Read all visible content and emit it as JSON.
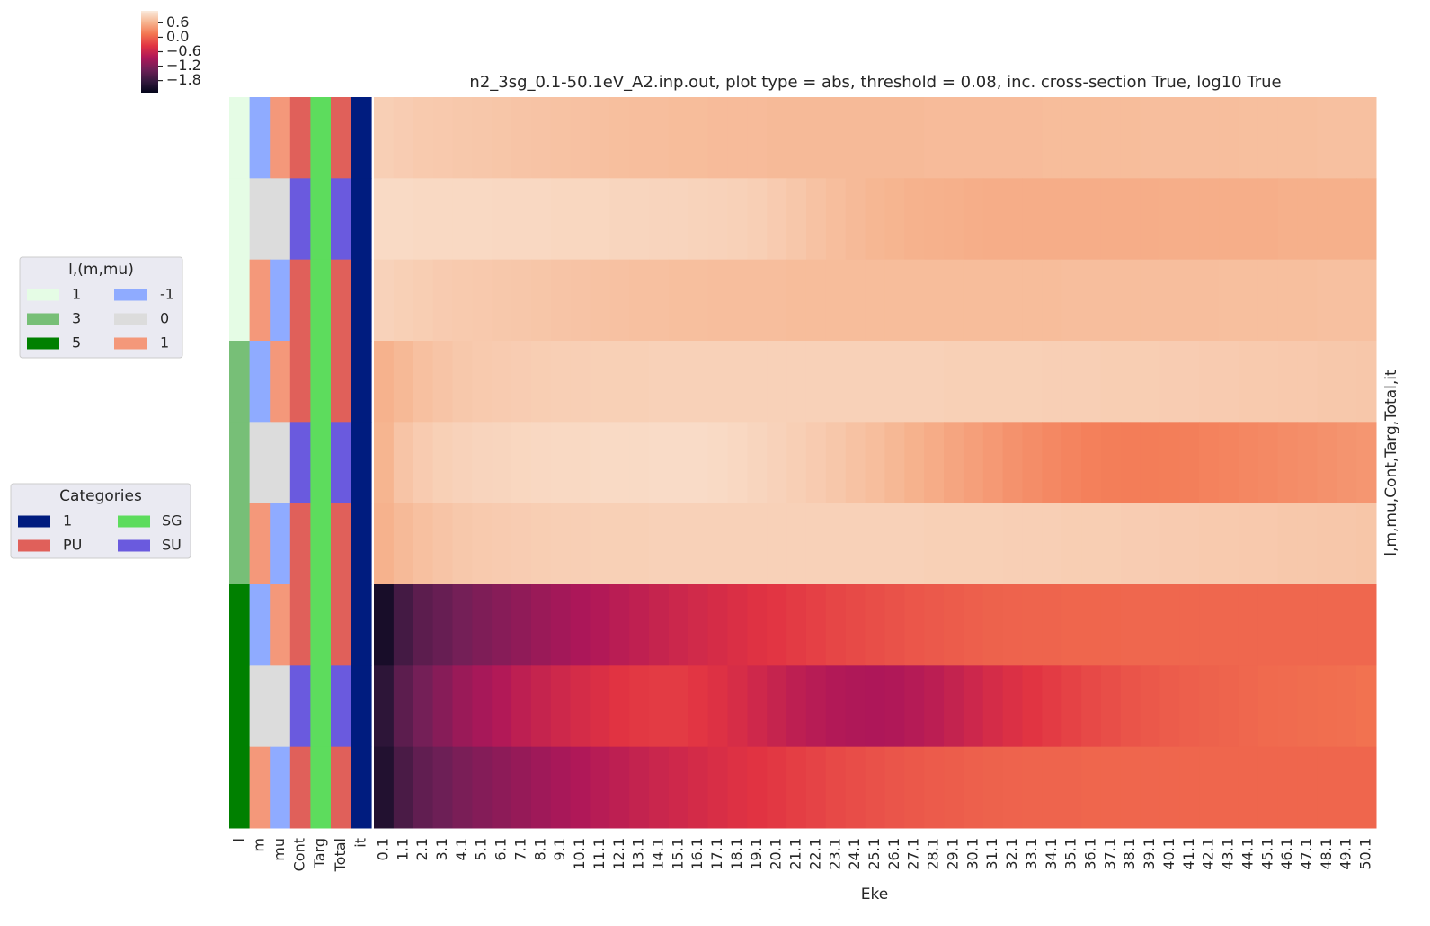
{
  "chart_data": {
    "type": "heatmap",
    "title": "n2_3sg_0.1-50.1eV_A2.inp.out, plot type = abs, threshold = 0.08, inc. cross-section True, log10 True",
    "xlabel": "Eke",
    "ylabel": "l,m,mu,Cont,Targ,Total,it",
    "categories": [
      "0.1",
      "1.1",
      "2.1",
      "3.1",
      "4.1",
      "5.1",
      "6.1",
      "7.1",
      "8.1",
      "9.1",
      "10.1",
      "11.1",
      "12.1",
      "13.1",
      "14.1",
      "15.1",
      "16.1",
      "17.1",
      "18.1",
      "19.1",
      "20.1",
      "21.1",
      "22.1",
      "23.1",
      "24.1",
      "25.1",
      "26.1",
      "27.1",
      "28.1",
      "29.1",
      "30.1",
      "31.1",
      "32.1",
      "33.1",
      "34.1",
      "35.1",
      "36.1",
      "37.1",
      "38.1",
      "39.1",
      "40.1",
      "41.1",
      "42.1",
      "43.1",
      "44.1",
      "45.1",
      "46.1",
      "47.1",
      "48.1",
      "49.1",
      "50.1"
    ],
    "values": [
      [
        0.85,
        0.83,
        0.81,
        0.8,
        0.79,
        0.78,
        0.77,
        0.76,
        0.75,
        0.74,
        0.73,
        0.72,
        0.71,
        0.7,
        0.7,
        0.69,
        0.69,
        0.68,
        0.68,
        0.68,
        0.67,
        0.67,
        0.67,
        0.67,
        0.67,
        0.67,
        0.67,
        0.67,
        0.68,
        0.68,
        0.68,
        0.68,
        0.68,
        0.68,
        0.69,
        0.69,
        0.69,
        0.69,
        0.69,
        0.7,
        0.7,
        0.7,
        0.7,
        0.7,
        0.71,
        0.71,
        0.71,
        0.71,
        0.72,
        0.72,
        0.72
      ],
      [
        0.95,
        0.95,
        0.94,
        0.94,
        0.94,
        0.94,
        0.93,
        0.93,
        0.93,
        0.92,
        0.92,
        0.92,
        0.91,
        0.91,
        0.9,
        0.9,
        0.89,
        0.88,
        0.87,
        0.85,
        0.82,
        0.78,
        0.74,
        0.7,
        0.67,
        0.64,
        0.62,
        0.6,
        0.59,
        0.58,
        0.57,
        0.56,
        0.56,
        0.56,
        0.56,
        0.56,
        0.56,
        0.56,
        0.56,
        0.56,
        0.57,
        0.57,
        0.57,
        0.57,
        0.57,
        0.57,
        0.58,
        0.58,
        0.58,
        0.58,
        0.58
      ],
      [
        0.88,
        0.86,
        0.84,
        0.82,
        0.81,
        0.8,
        0.79,
        0.78,
        0.77,
        0.76,
        0.75,
        0.74,
        0.73,
        0.72,
        0.72,
        0.71,
        0.71,
        0.7,
        0.7,
        0.7,
        0.7,
        0.69,
        0.69,
        0.69,
        0.69,
        0.69,
        0.69,
        0.69,
        0.69,
        0.69,
        0.69,
        0.69,
        0.69,
        0.69,
        0.69,
        0.7,
        0.7,
        0.7,
        0.7,
        0.7,
        0.7,
        0.7,
        0.7,
        0.71,
        0.71,
        0.71,
        0.71,
        0.71,
        0.72,
        0.72,
        0.72
      ],
      [
        0.6,
        0.66,
        0.72,
        0.76,
        0.79,
        0.81,
        0.82,
        0.83,
        0.84,
        0.85,
        0.85,
        0.86,
        0.86,
        0.86,
        0.87,
        0.87,
        0.87,
        0.87,
        0.87,
        0.87,
        0.87,
        0.87,
        0.87,
        0.87,
        0.87,
        0.87,
        0.87,
        0.87,
        0.87,
        0.86,
        0.86,
        0.86,
        0.86,
        0.86,
        0.85,
        0.85,
        0.85,
        0.84,
        0.84,
        0.84,
        0.83,
        0.83,
        0.82,
        0.82,
        0.81,
        0.81,
        0.8,
        0.8,
        0.79,
        0.79,
        0.78
      ],
      [
        0.62,
        0.76,
        0.82,
        0.86,
        0.88,
        0.9,
        0.91,
        0.92,
        0.93,
        0.94,
        0.94,
        0.95,
        0.95,
        0.95,
        0.96,
        0.96,
        0.96,
        0.95,
        0.93,
        0.91,
        0.88,
        0.85,
        0.82,
        0.78,
        0.74,
        0.7,
        0.65,
        0.6,
        0.55,
        0.5,
        0.45,
        0.4,
        0.35,
        0.31,
        0.27,
        0.24,
        0.21,
        0.19,
        0.18,
        0.18,
        0.19,
        0.2,
        0.22,
        0.24,
        0.26,
        0.28,
        0.3,
        0.32,
        0.34,
        0.36,
        0.38
      ],
      [
        0.6,
        0.67,
        0.72,
        0.76,
        0.79,
        0.81,
        0.82,
        0.83,
        0.84,
        0.85,
        0.85,
        0.86,
        0.86,
        0.86,
        0.87,
        0.87,
        0.87,
        0.87,
        0.87,
        0.87,
        0.87,
        0.87,
        0.87,
        0.87,
        0.87,
        0.87,
        0.87,
        0.87,
        0.86,
        0.86,
        0.86,
        0.86,
        0.85,
        0.85,
        0.85,
        0.84,
        0.84,
        0.84,
        0.83,
        0.83,
        0.82,
        0.82,
        0.81,
        0.81,
        0.8,
        0.8,
        0.79,
        0.79,
        0.78,
        0.78,
        0.77
      ],
      [
        -2.1,
        -1.7,
        -1.5,
        -1.4,
        -1.3,
        -1.22,
        -1.15,
        -1.08,
        -1.0,
        -0.93,
        -0.86,
        -0.8,
        -0.74,
        -0.68,
        -0.62,
        -0.57,
        -0.52,
        -0.47,
        -0.42,
        -0.38,
        -0.34,
        -0.3,
        -0.26,
        -0.22,
        -0.19,
        -0.16,
        -0.13,
        -0.1,
        -0.08,
        -0.06,
        -0.04,
        -0.02,
        -0.01,
        0.0,
        0.0,
        0.01,
        0.01,
        0.01,
        0.02,
        0.02,
        0.02,
        0.02,
        0.02,
        0.02,
        0.02,
        0.02,
        0.02,
        0.02,
        0.02,
        0.02,
        0.02
      ],
      [
        -1.9,
        -1.5,
        -1.3,
        -1.15,
        -1.0,
        -0.9,
        -0.8,
        -0.7,
        -0.62,
        -0.55,
        -0.48,
        -0.42,
        -0.36,
        -0.32,
        -0.3,
        -0.3,
        -0.34,
        -0.4,
        -0.46,
        -0.54,
        -0.62,
        -0.7,
        -0.76,
        -0.8,
        -0.83,
        -0.84,
        -0.82,
        -0.78,
        -0.72,
        -0.64,
        -0.56,
        -0.48,
        -0.41,
        -0.35,
        -0.3,
        -0.25,
        -0.2,
        -0.16,
        -0.12,
        -0.09,
        -0.06,
        -0.04,
        -0.02,
        0.0,
        0.02,
        0.04,
        0.05,
        0.06,
        0.07,
        0.08,
        0.1
      ],
      [
        -2.0,
        -1.65,
        -1.45,
        -1.35,
        -1.25,
        -1.17,
        -1.1,
        -1.03,
        -0.96,
        -0.89,
        -0.82,
        -0.76,
        -0.7,
        -0.64,
        -0.59,
        -0.54,
        -0.49,
        -0.44,
        -0.4,
        -0.36,
        -0.32,
        -0.28,
        -0.24,
        -0.2,
        -0.17,
        -0.14,
        -0.11,
        -0.09,
        -0.07,
        -0.05,
        -0.03,
        -0.02,
        -0.01,
        0.0,
        0.0,
        0.0,
        0.01,
        0.01,
        0.01,
        0.01,
        0.01,
        0.01,
        0.01,
        0.01,
        0.01,
        0.01,
        0.01,
        0.01,
        0.01,
        0.01,
        0.01
      ]
    ],
    "colormap": [
      "#03051a",
      "#36193e",
      "#701f57",
      "#ae1759",
      "#e13342",
      "#f37651",
      "#f6b48f",
      "#faebdd"
    ],
    "clim": [
      -2.3,
      1.1
    ],
    "cticks": [
      0.6,
      {
        "value": 0.0,
        "label": "0.0"
      },
      {
        "value": -0.6,
        "label": "−0.6"
      },
      {
        "value": -1.2,
        "label": "−1.2"
      },
      {
        "value": -1.8,
        "label": "−1.8"
      }
    ],
    "row_colors": {
      "labels": [
        "l",
        "m",
        "mu",
        "Cont",
        "Targ",
        "Total",
        "it"
      ],
      "colors": [
        [
          "#e5fce5",
          "#8fabff",
          "#f4987a",
          "#e0605a",
          "#5ddc5d",
          "#e0605a",
          "#001c7f"
        ],
        [
          "#e5fce5",
          "#dcdcdc",
          "#dcdcdc",
          "#6a5ade",
          "#5ddc5d",
          "#6a5ade",
          "#001c7f"
        ],
        [
          "#e5fce5",
          "#f4987a",
          "#8fabff",
          "#e0605a",
          "#5ddc5d",
          "#e0605a",
          "#001c7f"
        ],
        [
          "#77bf77",
          "#8fabff",
          "#f4987a",
          "#e0605a",
          "#5ddc5d",
          "#e0605a",
          "#001c7f"
        ],
        [
          "#77bf77",
          "#dcdcdc",
          "#dcdcdc",
          "#6a5ade",
          "#5ddc5d",
          "#6a5ade",
          "#001c7f"
        ],
        [
          "#77bf77",
          "#f4987a",
          "#8fabff",
          "#e0605a",
          "#5ddc5d",
          "#e0605a",
          "#001c7f"
        ],
        [
          "#008000",
          "#8fabff",
          "#f4987a",
          "#e0605a",
          "#5ddc5d",
          "#e0605a",
          "#001c7f"
        ],
        [
          "#008000",
          "#dcdcdc",
          "#dcdcdc",
          "#6a5ade",
          "#5ddc5d",
          "#6a5ade",
          "#001c7f"
        ],
        [
          "#008000",
          "#f4987a",
          "#8fabff",
          "#e0605a",
          "#5ddc5d",
          "#e0605a",
          "#001c7f"
        ]
      ]
    },
    "legends": [
      {
        "title": "l,(m,mu)",
        "entries": [
          {
            "label": "1",
            "color": "#e5fce5"
          },
          {
            "label": "3",
            "color": "#77bf77"
          },
          {
            "label": "5",
            "color": "#008000"
          },
          {
            "label": "-1",
            "color": "#8fabff"
          },
          {
            "label": "0",
            "color": "#dcdcdc"
          },
          {
            "label": "1",
            "color": "#f4987a"
          }
        ]
      },
      {
        "title": "Categories",
        "entries": [
          {
            "label": "1",
            "color": "#001c7f"
          },
          {
            "label": "PU",
            "color": "#e0605a"
          },
          {
            "label": "SG",
            "color": "#5ddc5d"
          },
          {
            "label": "SU",
            "color": "#6a5ade"
          }
        ]
      }
    ]
  }
}
